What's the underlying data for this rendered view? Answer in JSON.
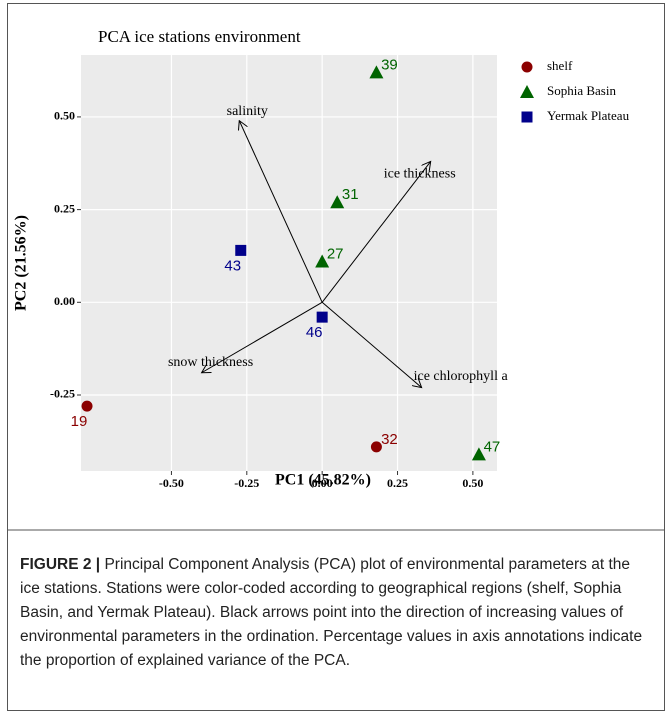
{
  "chart_data": {
    "type": "scatter",
    "title": "PCA ice stations environment",
    "x_label": "PC1 (45.82%)",
    "y_label": "PC2 (21.56%)",
    "xlim": [
      -0.8,
      0.58
    ],
    "ylim": [
      -0.455,
      0.667
    ],
    "xticks": [
      {
        "value": -0.5,
        "label": "-0.50"
      },
      {
        "value": -0.25,
        "label": "-0.25"
      },
      {
        "value": 0,
        "label": "0.00"
      },
      {
        "value": 0.25,
        "label": "0.25"
      },
      {
        "value": 0.5,
        "label": "0.50"
      }
    ],
    "yticks": [
      {
        "value": -0.25,
        "label": "-0.25"
      },
      {
        "value": 0,
        "label": "0.00"
      },
      {
        "value": 0.25,
        "label": "0.25"
      },
      {
        "value": 0.5,
        "label": "0.50"
      }
    ],
    "grid": true,
    "legend": "right",
    "series": [
      {
        "name": "shelf",
        "color": "#8b0000",
        "marker": "circle",
        "labels": [
          "19",
          "32"
        ],
        "x": [
          -0.78,
          0.18
        ],
        "values": [
          -0.28,
          -0.39
        ]
      },
      {
        "name": "Sophia Basin",
        "color": "#006400",
        "marker": "triangle",
        "labels": [
          "39",
          "31",
          "27",
          "47"
        ],
        "x": [
          0.18,
          0.05,
          0.0,
          0.52
        ],
        "values": [
          0.62,
          0.27,
          0.11,
          -0.41
        ]
      },
      {
        "name": "Yermak Plateau",
        "color": "#00008b",
        "marker": "square",
        "labels": [
          "43",
          "46"
        ],
        "x": [
          -0.27,
          0.0
        ],
        "values": [
          0.14,
          -0.04
        ]
      }
    ],
    "arrows": [
      {
        "label": "salinity",
        "x": -0.275,
        "y": 0.49
      },
      {
        "label": "ice thickness",
        "x": 0.36,
        "y": 0.38
      },
      {
        "label": "snow thickness",
        "x": -0.4,
        "y": -0.19
      },
      {
        "label": "ice chlorophyll a",
        "x": 0.33,
        "y": -0.23
      }
    ]
  },
  "caption": {
    "label": "FIGURE 2 |",
    "text": "Principal Component Analysis (PCA) plot of environmental parameters at the ice stations. Stations were color-coded according to geographical regions (shelf, Sophia Basin, and Yermak Plateau). Black arrows point into the direction of increasing values of environmental parameters in the ordination. Percentage values in axis annotations indicate the proportion of explained variance of the PCA."
  }
}
